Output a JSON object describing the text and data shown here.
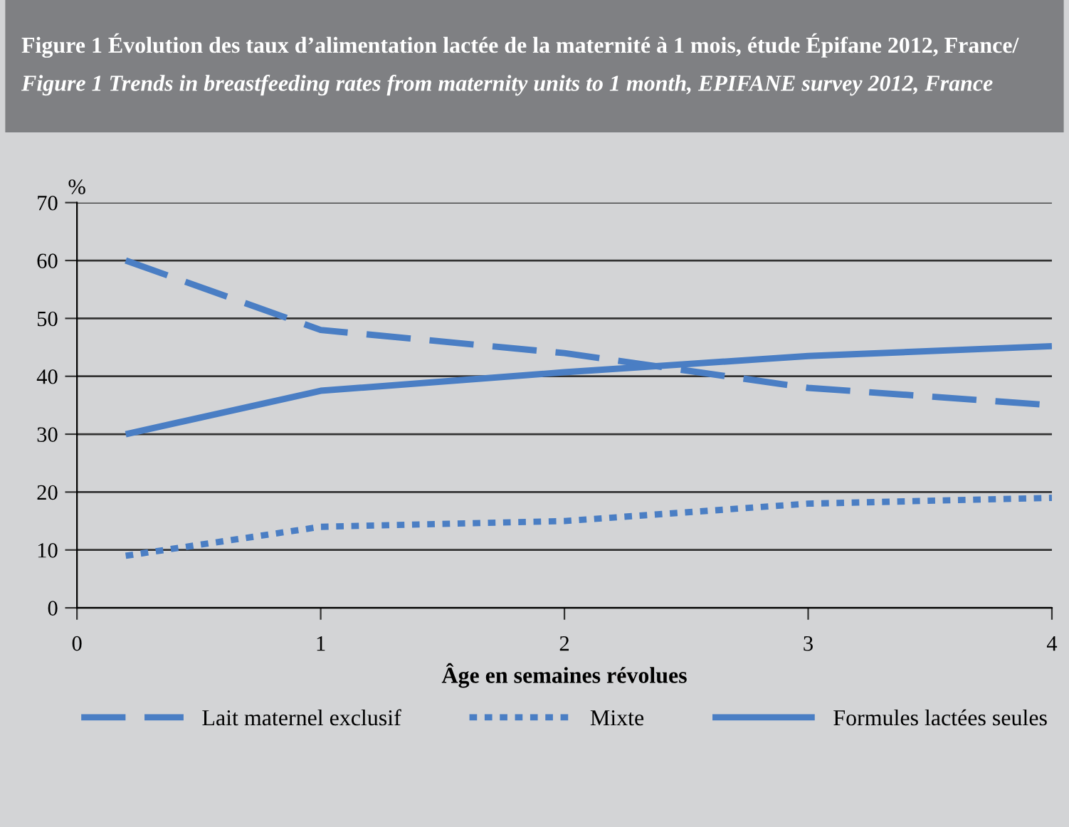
{
  "chart_data": {
    "type": "line",
    "title": "Figure 1 Évolution des taux d’alimentation lactée de la maternité à 1 mois, étude Épifane 2012, France/",
    "subtitle": "Figure 1 Trends in breastfeeding rates from maternity units to 1 month, EPIFANE survey 2012, France",
    "xlabel": "Âge en semaines révolues",
    "ylabel": "%",
    "x": [
      0.2,
      1,
      2,
      3,
      4
    ],
    "series": [
      {
        "name": "Lait maternel exclusif",
        "color": "#4a7ec4",
        "values": [
          60,
          48,
          44,
          38,
          35
        ],
        "line_style": "dashed"
      },
      {
        "name": "Mixte",
        "color": "#4a7ec4",
        "values": [
          9,
          14,
          15,
          18,
          19
        ],
        "line_style": "dotted"
      },
      {
        "name": "Formules lactées seules",
        "color": "#4a7ec4",
        "values": [
          30,
          37.5,
          40.7,
          43.5,
          45.2
        ],
        "line_style": "solid"
      }
    ],
    "xlim": [
      0,
      4
    ],
    "xticks": [
      0,
      1,
      2,
      3,
      4
    ],
    "ylim": [
      0,
      70
    ],
    "yticks": [
      0,
      10,
      20,
      30,
      40,
      50,
      60,
      70
    ],
    "grid": "y",
    "legend": "bottom"
  }
}
